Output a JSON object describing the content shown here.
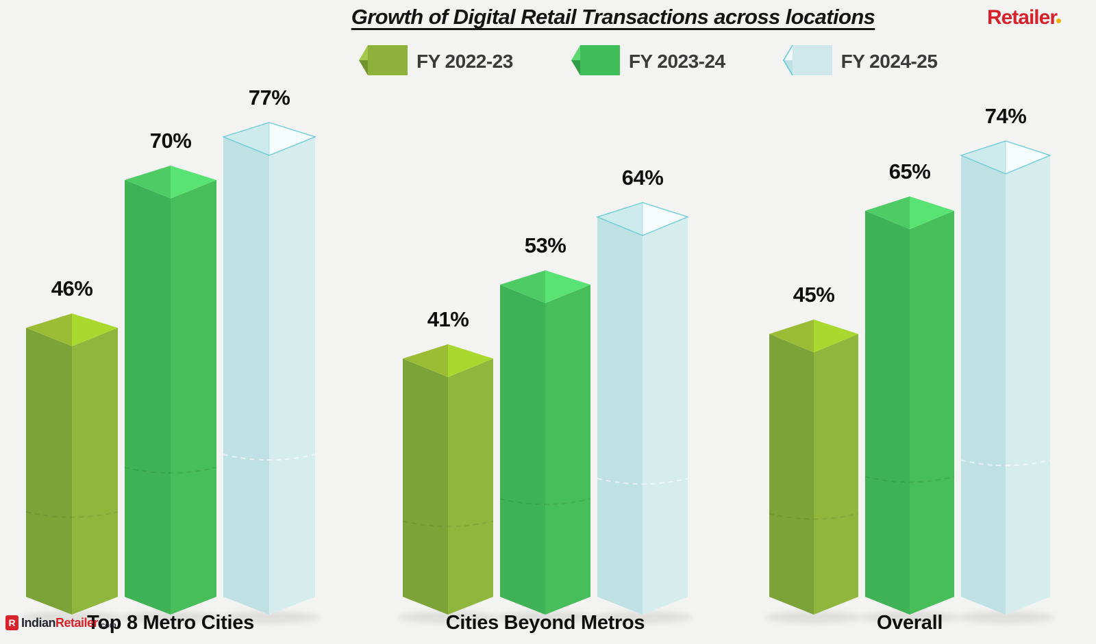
{
  "title": "Growth of Digital Retail Transactions across locations",
  "brand": {
    "top_right": {
      "text": "Retailer",
      "color": "#D5222B",
      "dot_color": "#EDB212"
    },
    "bottom_left": {
      "icon_letter": "R",
      "name_part1": "Indian",
      "name_part2": "Retailer",
      "suffix": ".com"
    }
  },
  "chart_data": {
    "type": "bar",
    "title": "Growth of Digital Retail Transactions across locations",
    "subtitle": "",
    "categories": [
      "Top 8 Metro Cities",
      "Cities Beyond Metros",
      "Overall"
    ],
    "series": [
      {
        "name": "FY 2022-23",
        "values": [
          46,
          41,
          45
        ],
        "style": {
          "left": "#7CA338",
          "right": "#90B63E",
          "top_left": "#9DBC35",
          "top_right": "#A9D92F",
          "open_top": false,
          "rim_stroke": "",
          "artifact": "dark",
          "legend": {
            "body": "#8DB13B",
            "point_top": "#A6C94C",
            "point_bottom": "#71942E",
            "edge": ""
          }
        }
      },
      {
        "name": "FY 2023-24",
        "values": [
          70,
          53,
          65
        ],
        "style": {
          "left": "#3EB254",
          "right": "#48BE5A",
          "top_left": "#4FCB66",
          "top_right": "#59E374",
          "open_top": false,
          "rim_stroke": "",
          "artifact": "dark",
          "legend": {
            "body": "#40BE59",
            "point_top": "#5FD874",
            "point_bottom": "#2F9E47",
            "edge": ""
          }
        }
      },
      {
        "name": "FY 2024-25",
        "values": [
          77,
          64,
          74
        ],
        "style": {
          "left": "#C0E1E4",
          "right": "#D6EDEE",
          "top_left": "#CDEAEC",
          "top_right": "#F6FBFC",
          "open_top": true,
          "rim_stroke": "#5FC9D6",
          "artifact": "light",
          "legend": {
            "body": "#CFE9EA",
            "point_top": "#F0FAFA",
            "point_bottom": "#BFE0E3",
            "edge": "#52C6D4"
          }
        }
      }
    ],
    "unit": "%",
    "value_labels": true,
    "value_label_color": "#0E0E0E",
    "category_label_color": "#0E0E0E",
    "legend_position": "top-center",
    "grid": false,
    "axes": "none",
    "ylim": [
      0,
      100
    ],
    "background": "#F3F3F1",
    "bar_style": "3d-crystal-column"
  }
}
